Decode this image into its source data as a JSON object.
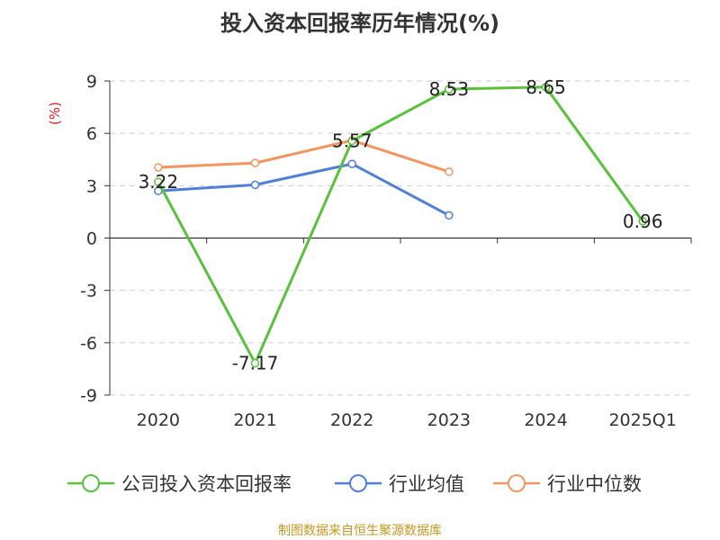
{
  "chart_data": {
    "type": "line",
    "title": "投入资本回报率历年情况(%)",
    "ylabel": "(%)",
    "xlabel": "",
    "categories": [
      "2020",
      "2021",
      "2022",
      "2023",
      "2024",
      "2025Q1"
    ],
    "ylim": [
      -9,
      9
    ],
    "yticks": [
      9,
      6,
      3,
      0,
      -3,
      -6,
      -9
    ],
    "grid": true,
    "legend_position": "bottom",
    "series": [
      {
        "name": "公司投入资本回报率",
        "values": [
          3.22,
          -7.17,
          5.57,
          8.53,
          8.65,
          0.96
        ],
        "labels": [
          "3.22",
          "-7.17",
          "5.57",
          "8.53",
          "8.65",
          "0.96"
        ],
        "color": "#5ac13c"
      },
      {
        "name": "行业均值",
        "values": [
          2.7,
          3.05,
          4.25,
          1.3,
          null,
          null
        ],
        "color": "#4f7fd8"
      },
      {
        "name": "行业中位数",
        "values": [
          4.05,
          4.3,
          5.6,
          3.8,
          null,
          null
        ],
        "color": "#f39561"
      }
    ]
  },
  "source": "制图数据来自恒生聚源数据库"
}
